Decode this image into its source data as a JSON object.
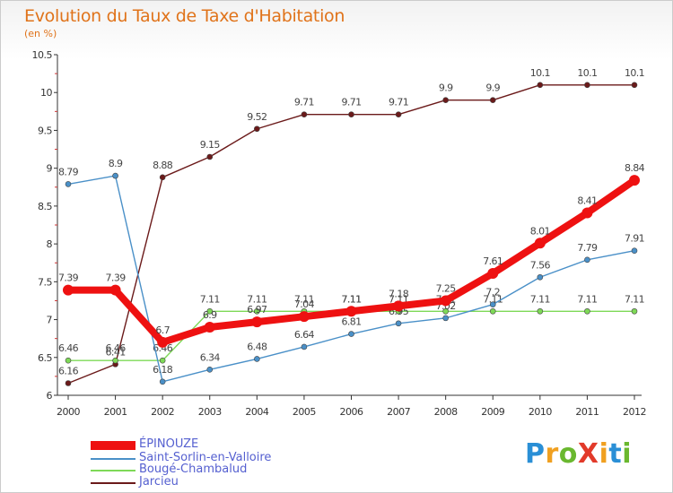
{
  "header": {
    "title": "Evolution du Taux de Taxe d'Habitation",
    "subtitle": "(en %)"
  },
  "logo": {
    "text": "ProXiti",
    "letters": [
      {
        "ch": "P",
        "color": "#2a8fd6"
      },
      {
        "ch": "r",
        "color": "#f0a020"
      },
      {
        "ch": "o",
        "color": "#6ab82f"
      },
      {
        "ch": "X",
        "color": "#e23a2a"
      },
      {
        "ch": "i",
        "color": "#f0a020"
      },
      {
        "ch": "t",
        "color": "#2a8fd6"
      },
      {
        "ch": "i",
        "color": "#6ab82f"
      }
    ]
  },
  "chart_data": {
    "type": "line",
    "title": "Evolution du Taux de Taxe d'Habitation",
    "subtitle": "(en %)",
    "x": [
      2000,
      2001,
      2002,
      2003,
      2004,
      2005,
      2006,
      2007,
      2008,
      2009,
      2010,
      2011,
      2012
    ],
    "ylim": [
      6,
      10.5
    ],
    "yticks": [
      "6",
      "6.5",
      "7",
      "7.5",
      "8",
      "8.5",
      "9",
      "9.5",
      "10",
      "10.5"
    ],
    "xticks": [
      "2000",
      "2001",
      "2002",
      "2003",
      "2004",
      "2005",
      "2006",
      "2007",
      "2008",
      "2009",
      "2010",
      "2011",
      "2012"
    ],
    "grid": false,
    "legend_position": "bottom-left",
    "series": [
      {
        "name": "Jarcieu",
        "color": "#6b1a1a",
        "values": [
          6.16,
          6.41,
          8.88,
          9.15,
          9.52,
          9.71,
          9.71,
          9.71,
          9.9,
          9.9,
          10.1,
          10.1,
          10.1
        ],
        "labels": [
          "6.16",
          "6.41",
          "8.88",
          "9.15",
          "9.52",
          "9.71",
          "9.71",
          "9.71",
          "9.9",
          "9.9",
          "10.1",
          "10.1",
          "10.1"
        ]
      },
      {
        "name": "Bougé-Chambalud",
        "color": "#7ed957",
        "values": [
          6.46,
          6.46,
          6.46,
          7.11,
          7.11,
          7.11,
          7.11,
          7.11,
          7.11,
          7.11,
          7.11,
          7.11,
          7.11
        ],
        "labels": [
          "6.46",
          "6.46",
          "6.46",
          "7.11",
          "7.11",
          "7.11",
          "7.11",
          "7.11",
          "7.11",
          "7.11",
          "7.11",
          "7.11",
          "7.11"
        ]
      },
      {
        "name": "Saint-Sorlin-en-Valloire",
        "color": "#4a90c8",
        "values": [
          8.79,
          8.9,
          6.18,
          6.34,
          6.48,
          6.64,
          6.81,
          6.95,
          7.02,
          7.2,
          7.56,
          7.79,
          7.91
        ],
        "labels": [
          "8.79",
          "8.9",
          "6.18",
          "6.34",
          "6.48",
          "6.64",
          "6.81",
          "6.95",
          "7.02",
          "7.2",
          "7.56",
          "7.79",
          "7.91"
        ]
      },
      {
        "name": "ÉPINOUZE",
        "color": "#ee1111",
        "values": [
          7.39,
          7.39,
          6.7,
          6.9,
          6.97,
          7.04,
          7.11,
          7.18,
          7.25,
          7.61,
          8.01,
          8.41,
          8.84
        ],
        "labels": [
          "7.39",
          "7.39",
          "6.7",
          "6.9",
          "6.97",
          "7.04",
          "7.11",
          "7.18",
          "7.25",
          "7.61",
          "8.01",
          "8.41",
          "8.84"
        ]
      }
    ],
    "legend": [
      {
        "name": "ÉPINOUZE",
        "color": "#ee1111"
      },
      {
        "name": "Saint-Sorlin-en-Valloire",
        "color": "#4a90c8"
      },
      {
        "name": "Bougé-Chambalud",
        "color": "#7ed957"
      },
      {
        "name": "Jarcieu",
        "color": "#6b1a1a"
      }
    ]
  }
}
